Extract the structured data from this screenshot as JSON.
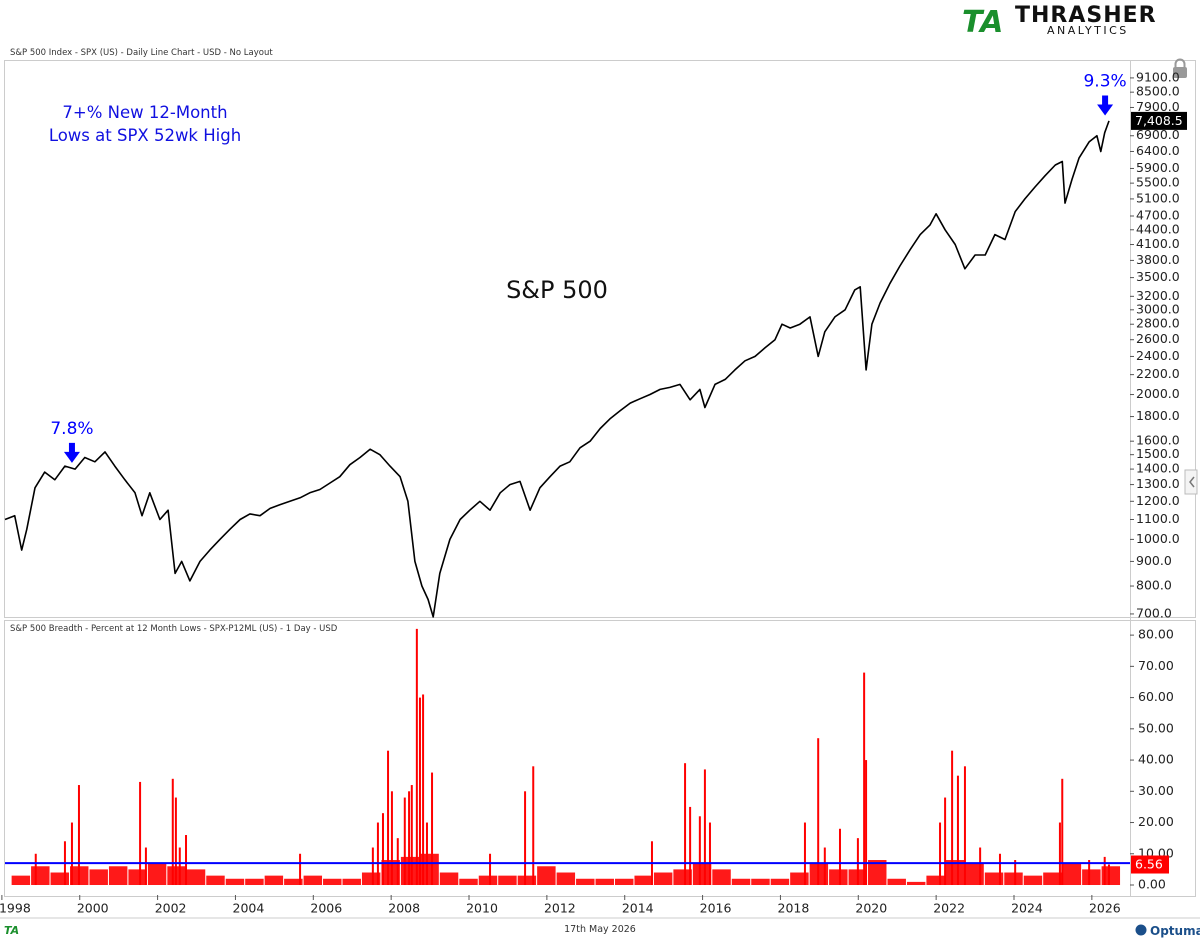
{
  "header": {
    "logo_mark": "TA",
    "logo_name": "THRASHER",
    "logo_sub": "ANALYTICS"
  },
  "chart_data": [
    {
      "type": "line",
      "title": "S&P 500 Index - SPX (US) - Daily Line Chart - USD - No Layout",
      "label": "S&P 500",
      "note": [
        "7+% New 12-Month",
        "Lows at SPX 52wk High"
      ],
      "color": "#000000",
      "log_scale": true,
      "xlim": [
        1998.08,
        2026.98
      ],
      "ylim": [
        680,
        9820
      ],
      "yticks": [
        {
          "value": 700,
          "label": "700.0"
        },
        {
          "value": 800,
          "label": "800.0"
        },
        {
          "value": 900,
          "label": "900.0"
        },
        {
          "value": 1000,
          "label": "1000.0"
        },
        {
          "value": 1100,
          "label": "1100.0"
        },
        {
          "value": 1200,
          "label": "1200.0"
        },
        {
          "value": 1300,
          "label": "1300.0"
        },
        {
          "value": 1400,
          "label": "1400.0"
        },
        {
          "value": 1500,
          "label": "1500.0"
        },
        {
          "value": 1600,
          "label": "1600.0"
        },
        {
          "value": 1800,
          "label": "1800.0"
        },
        {
          "value": 2000,
          "label": "2000.0"
        },
        {
          "value": 2200,
          "label": "2200.0"
        },
        {
          "value": 2400,
          "label": "2400.0"
        },
        {
          "value": 2600,
          "label": "2600.0"
        },
        {
          "value": 2800,
          "label": "2800.0"
        },
        {
          "value": 3000,
          "label": "3000.0"
        },
        {
          "value": 3200,
          "label": "3200.0"
        },
        {
          "value": 3500,
          "label": "3500.0"
        },
        {
          "value": 3800,
          "label": "3800.0"
        },
        {
          "value": 4100,
          "label": "4100.0"
        },
        {
          "value": 4400,
          "label": "4400.0"
        },
        {
          "value": 4700,
          "label": "4700.0"
        },
        {
          "value": 5100,
          "label": "5100.0"
        },
        {
          "value": 5500,
          "label": "5500.0"
        },
        {
          "value": 5900,
          "label": "5900.0"
        },
        {
          "value": 6400,
          "label": "6400.0"
        },
        {
          "value": 6900,
          "label": "6900.0"
        },
        {
          "value": 7900,
          "label": "7900.0"
        },
        {
          "value": 8500,
          "label": "8500.0"
        },
        {
          "value": 9100,
          "label": "9100.0"
        }
      ],
      "x": [
        1998.08,
        1998.33,
        1998.51,
        1998.64,
        1998.85,
        1999.1,
        1999.36,
        1999.62,
        1999.88,
        2000.13,
        2000.39,
        2000.65,
        2000.9,
        2001.16,
        2001.42,
        2001.6,
        2001.8,
        2002.06,
        2002.27,
        2002.45,
        2002.62,
        2002.83,
        2003.09,
        2003.34,
        2003.6,
        2003.86,
        2004.12,
        2004.37,
        2004.63,
        2004.89,
        2005.14,
        2005.4,
        2005.66,
        2005.91,
        2006.17,
        2006.43,
        2006.68,
        2006.94,
        2007.2,
        2007.46,
        2007.71,
        2007.97,
        2008.23,
        2008.43,
        2008.61,
        2008.79,
        2008.95,
        2009.08,
        2009.25,
        2009.51,
        2009.77,
        2010.02,
        2010.28,
        2010.54,
        2010.8,
        2011.05,
        2011.31,
        2011.57,
        2011.82,
        2012.08,
        2012.34,
        2012.59,
        2012.85,
        2013.11,
        2013.37,
        2013.62,
        2013.88,
        2014.14,
        2014.39,
        2014.65,
        2014.91,
        2015.16,
        2015.42,
        2015.68,
        2015.93,
        2016.06,
        2016.32,
        2016.58,
        2016.83,
        2017.09,
        2017.35,
        2017.6,
        2017.86,
        2018.04,
        2018.25,
        2018.5,
        2018.76,
        2018.97,
        2019.14,
        2019.4,
        2019.66,
        2019.91,
        2020.05,
        2020.2,
        2020.35,
        2020.56,
        2020.81,
        2021.07,
        2021.33,
        2021.59,
        2021.84,
        2022.0,
        2022.23,
        2022.49,
        2022.74,
        2023.0,
        2023.26,
        2023.51,
        2023.77,
        2024.03,
        2024.28,
        2024.54,
        2024.8,
        2025.06,
        2025.24,
        2025.31,
        2025.49,
        2025.67,
        2025.93,
        2026.13,
        2026.23,
        2026.33,
        2026.44
      ],
      "values": [
        1100,
        1120,
        950,
        1050,
        1280,
        1380,
        1330,
        1420,
        1400,
        1480,
        1450,
        1520,
        1420,
        1330,
        1250,
        1120,
        1250,
        1100,
        1150,
        850,
        900,
        820,
        900,
        950,
        1000,
        1050,
        1100,
        1130,
        1120,
        1160,
        1180,
        1200,
        1220,
        1250,
        1270,
        1310,
        1350,
        1430,
        1480,
        1540,
        1500,
        1420,
        1350,
        1200,
        900,
        800,
        750,
        690,
        850,
        1000,
        1100,
        1150,
        1200,
        1150,
        1250,
        1300,
        1320,
        1150,
        1280,
        1350,
        1420,
        1450,
        1550,
        1600,
        1700,
        1780,
        1850,
        1920,
        1960,
        2000,
        2050,
        2070,
        2100,
        1950,
        2050,
        1880,
        2100,
        2150,
        2250,
        2350,
        2400,
        2500,
        2600,
        2800,
        2750,
        2800,
        2900,
        2400,
        2700,
        2900,
        3000,
        3300,
        3350,
        2250,
        2800,
        3100,
        3400,
        3700,
        4000,
        4300,
        4500,
        4750,
        4400,
        4100,
        3650,
        3900,
        3900,
        4300,
        4200,
        4800,
        5100,
        5400,
        5700,
        6000,
        6100,
        5000,
        5600,
        6200,
        6700,
        6900,
        6400,
        7000,
        7408.5
      ],
      "last_label": {
        "value": 7408.5,
        "label": "7,408.5"
      },
      "arrows": [
        {
          "text": "7.8%",
          "x": 1999.8,
          "y": 1442,
          "color": "#0000ff"
        },
        {
          "text": "9.3%",
          "x": 2026.34,
          "y": 7600,
          "color": "#0000ff"
        }
      ]
    },
    {
      "type": "bar",
      "title": "S&P 500 Breadth - Percent at 12 Month Lows - SPX-P12ML (US) - 1 Day - USD",
      "color": "#ff0000",
      "xlim": [
        1998.08,
        2026.98
      ],
      "ylim": [
        -3.2,
        84.2
      ],
      "xticks": [
        1998,
        2000,
        2002,
        2004,
        2006,
        2008,
        2010,
        2012,
        2014,
        2016,
        2018,
        2020,
        2022,
        2024,
        2026
      ],
      "yticks": [
        {
          "value": 0,
          "label": "0.00"
        },
        {
          "value": 10,
          "label": "10.00"
        },
        {
          "value": 20,
          "label": "20.00"
        },
        {
          "value": 30,
          "label": "30.00"
        },
        {
          "value": 40,
          "label": "40.00"
        },
        {
          "value": 50,
          "label": "50.00"
        },
        {
          "value": 60,
          "label": "60.00"
        },
        {
          "value": 70,
          "label": "70.00"
        },
        {
          "value": 80,
          "label": "80.00"
        }
      ],
      "x": [
        1998.87,
        1999.62,
        1999.8,
        1999.98,
        2001.55,
        2001.7,
        2002.39,
        2002.47,
        2002.57,
        2002.73,
        2005.66,
        2007.53,
        2007.66,
        2007.79,
        2007.92,
        2008.02,
        2008.17,
        2008.35,
        2008.46,
        2008.53,
        2008.66,
        2008.74,
        2008.82,
        2008.92,
        2009.05,
        2010.54,
        2011.44,
        2011.65,
        2014.7,
        2015.55,
        2015.68,
        2015.93,
        2016.06,
        2016.19,
        2018.63,
        2018.97,
        2019.14,
        2019.53,
        2019.99,
        2020.15,
        2020.2,
        2022.1,
        2022.23,
        2022.41,
        2022.56,
        2022.74,
        2023.13,
        2023.64,
        2024.03,
        2025.18,
        2025.24,
        2025.93,
        2026.33,
        2026.44
      ],
      "values": [
        10,
        14,
        20,
        32,
        33,
        12,
        34,
        28,
        12,
        16,
        10,
        12,
        20,
        23,
        43,
        30,
        15,
        28,
        30,
        32,
        82,
        60,
        61,
        20,
        36,
        10,
        30,
        38,
        14,
        39,
        25,
        22,
        37,
        20,
        20,
        47,
        12,
        18,
        15,
        68,
        40,
        20,
        28,
        43,
        35,
        38,
        12,
        10,
        8,
        20,
        34,
        8,
        9,
        6.56
      ],
      "noise": {
        "x": [
          1998.25,
          1998.75,
          1999.25,
          1999.75,
          2000.25,
          2000.75,
          2001.25,
          2001.75,
          2002.25,
          2002.75,
          2003.25,
          2003.75,
          2004.25,
          2004.75,
          2005.25,
          2005.75,
          2006.25,
          2006.75,
          2007.25,
          2007.75,
          2008.25,
          2008.75,
          2009.25,
          2009.75,
          2010.25,
          2010.75,
          2011.25,
          2011.75,
          2012.25,
          2012.75,
          2013.25,
          2013.75,
          2014.25,
          2014.75,
          2015.25,
          2015.75,
          2016.25,
          2016.75,
          2017.25,
          2017.75,
          2018.25,
          2018.75,
          2019.25,
          2019.75,
          2020.25,
          2020.75,
          2021.25,
          2021.75,
          2022.25,
          2022.75,
          2023.25,
          2023.75,
          2024.25,
          2024.75,
          2025.25,
          2025.75,
          2026.25
        ],
        "values": [
          3,
          6,
          4,
          6,
          5,
          6,
          5,
          7,
          6,
          5,
          3,
          2,
          2,
          3,
          2,
          3,
          2,
          2,
          4,
          8,
          9,
          10,
          4,
          2,
          3,
          3,
          3,
          6,
          4,
          2,
          2,
          2,
          3,
          4,
          5,
          7,
          5,
          2,
          2,
          2,
          4,
          7,
          5,
          5,
          8,
          2,
          1,
          3,
          8,
          7,
          4,
          4,
          3,
          4,
          7,
          5,
          6
        ]
      },
      "threshold": {
        "value": 7,
        "color": "#0000ff"
      },
      "last_label": {
        "value": 6.56,
        "label": "6.56"
      }
    }
  ],
  "footer": {
    "date": "17th May 2026",
    "brand": "Optuma",
    "mark": "TA"
  }
}
